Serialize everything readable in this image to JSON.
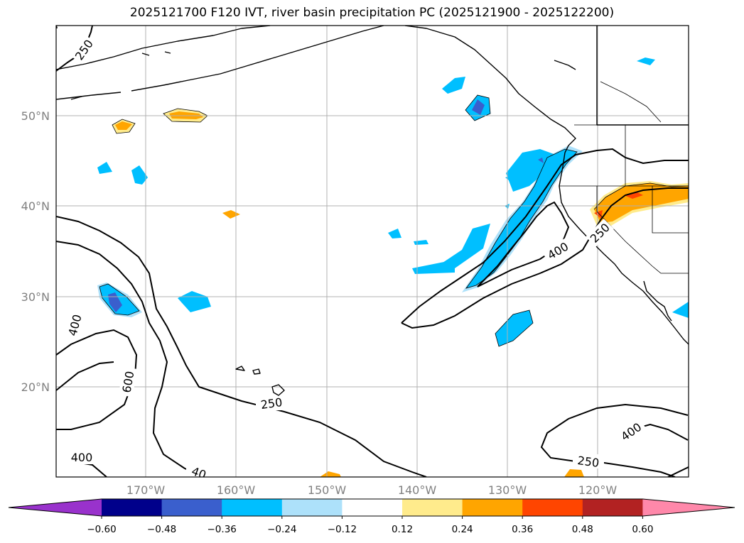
{
  "title": "2025121700 F120 IVT, river basin precipitation PC (2025121900 - 2025122200)",
  "lat_labels": [
    "50°N",
    "40°N",
    "30°N",
    "20°N"
  ],
  "lon_labels": [
    "170°W",
    "160°W",
    "150°W",
    "140°W",
    "130°W",
    "120°W"
  ],
  "contour_labels": {
    "c250_north": "250",
    "c250_central": "250",
    "c250_coast": "250",
    "c250_south": "250",
    "c400_west": "400",
    "c400_ar": "400",
    "c400_sw": "400",
    "c400_se": "400",
    "c400_bottom": "40",
    "c600": "600"
  },
  "colorbar": {
    "ticks": [
      "−0.60",
      "−0.48",
      "−0.36",
      "−0.24",
      "−0.12",
      "0.12",
      "0.24",
      "0.36",
      "0.48",
      "0.60"
    ],
    "colors": [
      "#9932CC",
      "#00008B",
      "#3A5FCD",
      "#00BFFF",
      "#ADE1FA",
      "#FFFFFF",
      "#FFEB8C",
      "#FFA500",
      "#FF4500",
      "#B22222",
      "#FF88AA"
    ]
  }
}
